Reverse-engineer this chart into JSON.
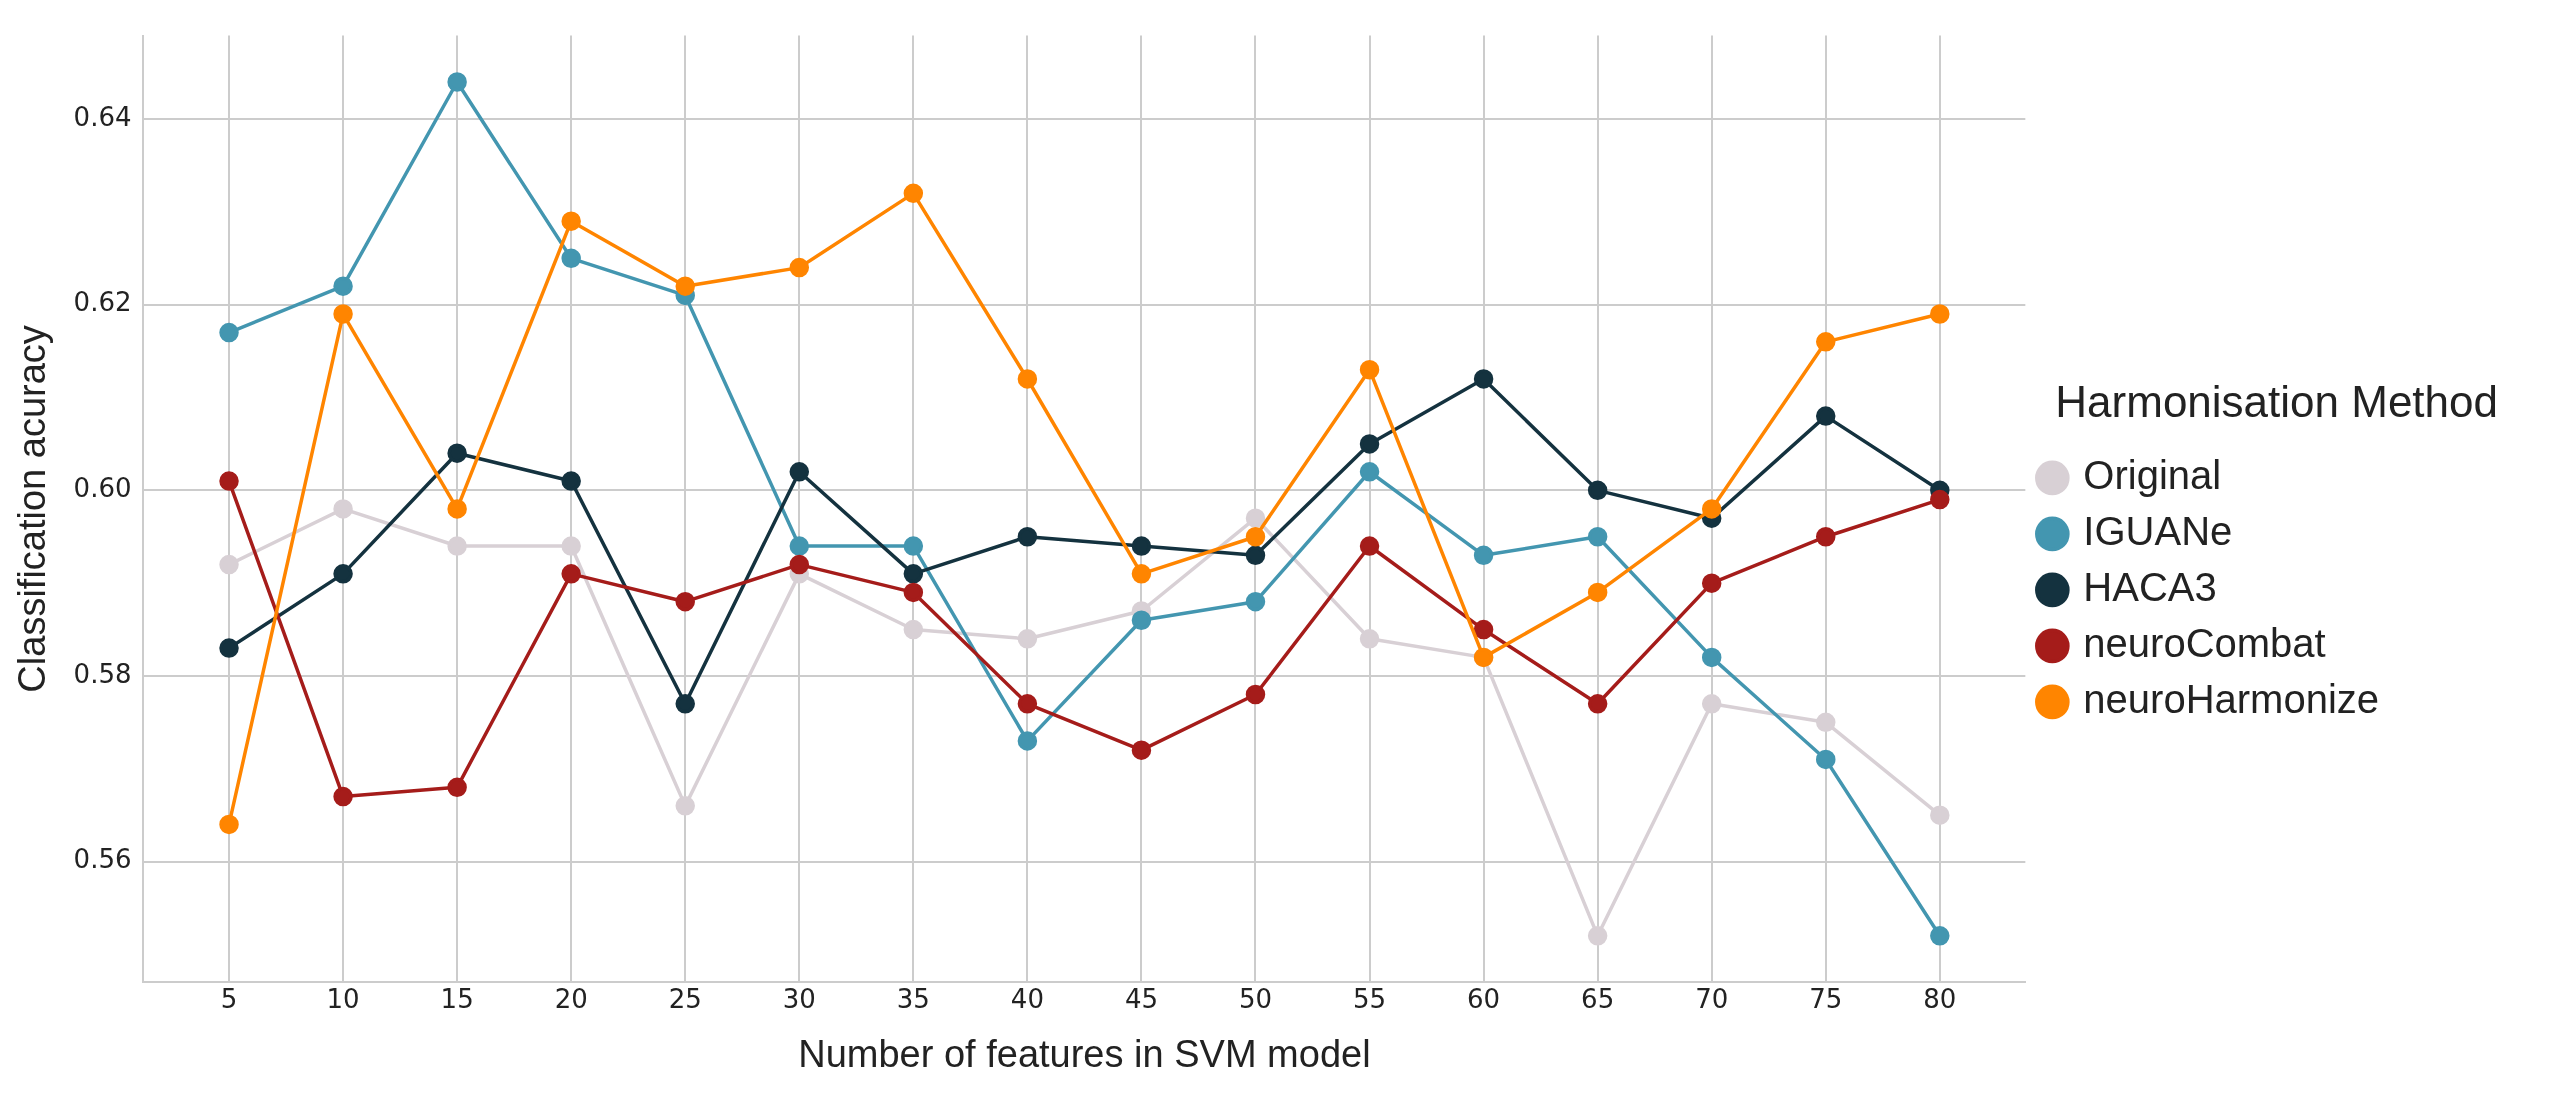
{
  "chart_data": {
    "type": "line",
    "xlabel": "Number of features in SVM model",
    "ylabel": "Classification acuracy",
    "legend_title": "Harmonisation Method",
    "x": [
      5,
      10,
      15,
      20,
      25,
      30,
      35,
      40,
      45,
      50,
      55,
      60,
      65,
      70,
      75,
      80
    ],
    "xlim": [
      1.25,
      83.75
    ],
    "xticks": [
      5,
      10,
      15,
      20,
      25,
      30,
      35,
      40,
      45,
      50,
      55,
      60,
      65,
      70,
      75,
      80
    ],
    "ylim": [
      0.547,
      0.649
    ],
    "yticks": [
      {
        "value": 0.56,
        "label": "0.56"
      },
      {
        "value": 0.58,
        "label": "0.58"
      },
      {
        "value": 0.6,
        "label": "0.60"
      },
      {
        "value": 0.62,
        "label": "0.62"
      },
      {
        "value": 0.64,
        "label": "0.64"
      }
    ],
    "grid": true,
    "legend": "right",
    "marker": "circle",
    "line_style": "solid",
    "series": [
      {
        "name": "Original",
        "color": "#d8d0d5",
        "values": [
          0.592,
          0.598,
          0.594,
          0.594,
          0.566,
          0.591,
          0.585,
          0.584,
          0.587,
          0.597,
          0.584,
          0.582,
          0.552,
          0.577,
          0.575,
          0.565
        ]
      },
      {
        "name": "IGUANe",
        "color": "#4396b0",
        "values": [
          0.617,
          0.622,
          0.644,
          0.625,
          0.621,
          0.594,
          0.594,
          0.573,
          0.586,
          0.588,
          0.602,
          0.593,
          0.595,
          0.582,
          0.571,
          0.552
        ]
      },
      {
        "name": "HACA3",
        "color": "#14323f",
        "values": [
          0.583,
          0.591,
          0.604,
          0.601,
          0.577,
          0.602,
          0.591,
          0.595,
          0.594,
          0.593,
          0.605,
          0.612,
          0.6,
          0.597,
          0.608,
          0.6
        ]
      },
      {
        "name": "neuroCombat",
        "color": "#a51c1a",
        "values": [
          0.601,
          0.567,
          0.568,
          0.591,
          0.588,
          0.592,
          0.589,
          0.577,
          0.572,
          0.578,
          0.594,
          0.585,
          0.577,
          0.59,
          0.595,
          0.599
        ]
      },
      {
        "name": "neuroHarmonize",
        "color": "#ff8500",
        "values": [
          0.564,
          0.619,
          0.598,
          0.629,
          0.622,
          0.624,
          0.632,
          0.612,
          0.591,
          0.595,
          0.613,
          0.582,
          0.589,
          0.598,
          0.616,
          0.619
        ]
      }
    ]
  }
}
